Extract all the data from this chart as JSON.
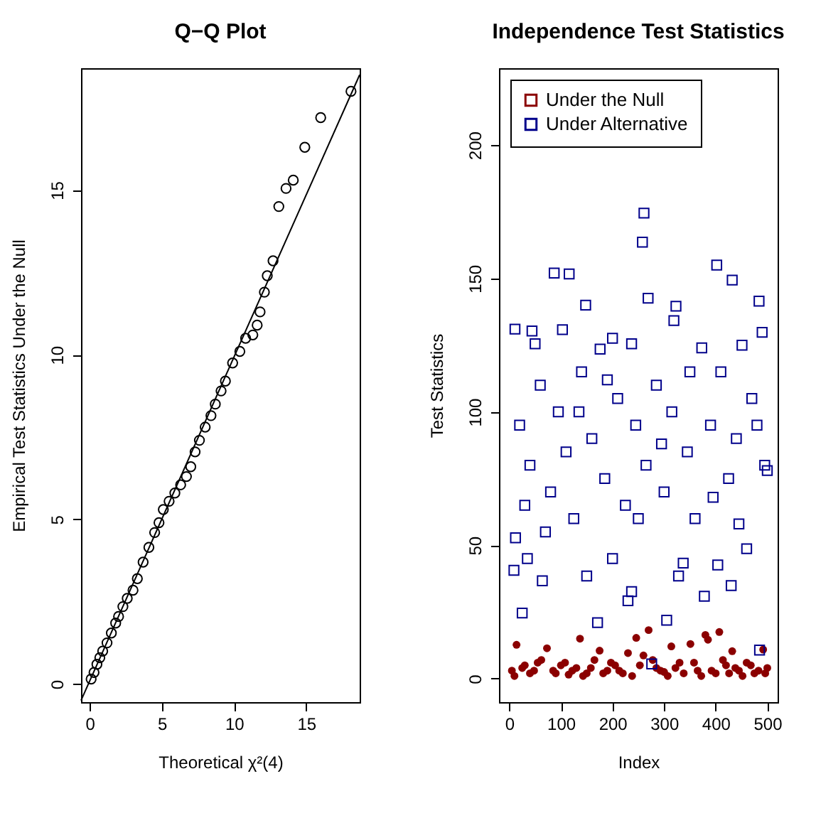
{
  "chart_data": [
    {
      "type": "scatter",
      "title": "Q−Q Plot",
      "xlabel": "Theoretical χ²(4)",
      "ylabel": "Empirical Test Statistics Under the Null",
      "xlim": [
        -0.6,
        18.7
      ],
      "ylim": [
        -0.55,
        18.7
      ],
      "xticks": [
        0,
        5,
        10,
        15
      ],
      "yticks": [
        0,
        5,
        10,
        15
      ],
      "grid": false,
      "series": [
        {
          "color": "#000000",
          "marker": "circle",
          "x": [
            0.1,
            0.3,
            0.5,
            0.7,
            0.9,
            1.2,
            1.5,
            1.8,
            2.0,
            2.3,
            2.6,
            3.0,
            3.3,
            3.7,
            4.1,
            4.5,
            4.8,
            5.1,
            5.5,
            5.9,
            6.3,
            6.7,
            7.0,
            7.3,
            7.6,
            8.0,
            8.4,
            8.7,
            9.1,
            9.4,
            9.9,
            10.4,
            10.8,
            11.3,
            11.6,
            11.8,
            12.1,
            12.3,
            12.7,
            13.1,
            13.6,
            14.1,
            14.9,
            16.0,
            18.1
          ],
          "values": [
            0.15,
            0.35,
            0.6,
            0.8,
            1.0,
            1.25,
            1.55,
            1.85,
            2.05,
            2.35,
            2.6,
            2.85,
            3.2,
            3.7,
            4.15,
            4.6,
            4.9,
            5.3,
            5.55,
            5.8,
            6.05,
            6.3,
            6.6,
            7.05,
            7.4,
            7.8,
            8.15,
            8.5,
            8.9,
            9.2,
            9.75,
            10.1,
            10.5,
            10.6,
            10.9,
            11.3,
            11.9,
            12.4,
            12.85,
            14.5,
            15.05,
            15.3,
            16.3,
            17.2,
            18.0
          ]
        },
        {
          "type": "line",
          "marker": "none",
          "color": "#000000",
          "x": [
            -0.6,
            18.7
          ],
          "values": [
            -0.5,
            18.5
          ]
        }
      ]
    },
    {
      "type": "scatter",
      "title": "Independence Test Statistics",
      "xlabel": "Index",
      "ylabel": "Test Statistics",
      "xlim": [
        -20,
        520
      ],
      "ylim": [
        -8.8,
        228.8
      ],
      "xticks": [
        0,
        100,
        200,
        300,
        400,
        500
      ],
      "yticks": [
        0,
        50,
        100,
        150,
        200
      ],
      "grid": false,
      "legend": "top left",
      "series": [
        {
          "name": "Under the Null",
          "color": "#8b0000",
          "marker": "circle",
          "x": [
            5,
            14,
            25,
            40,
            55,
            73,
            85,
            100,
            115,
            130,
            137,
            150,
            165,
            175,
            190,
            205,
            220,
            230,
            246,
            260,
            270,
            285,
            300,
            314,
            330,
            351,
            365,
            380,
            385,
            400,
            407,
            420,
            432,
            445,
            460,
            475,
            492,
            500,
            10,
            30,
            48,
            62,
            90,
            108,
            122,
            143,
            158,
            182,
            197,
            213,
            238,
            253,
            278,
            293,
            307,
            322,
            338,
            358,
            372,
            392,
            414,
            426,
            438,
            452,
            468,
            483,
            496
          ],
          "values": [
            3,
            12.7,
            4,
            2,
            6,
            11.4,
            3,
            5,
            1.5,
            4,
            15,
            2,
            7,
            10.5,
            3,
            5,
            2,
            9.6,
            15.3,
            8.7,
            18.2,
            4,
            2.5,
            12.1,
            6,
            13,
            3,
            16.4,
            14.6,
            2,
            17.5,
            5,
            10.3,
            3,
            6,
            2,
            10.9,
            4,
            1,
            5,
            3,
            7,
            2,
            6,
            3,
            1,
            4,
            2,
            6,
            3,
            1,
            5,
            7,
            3,
            1,
            4,
            2,
            6,
            1,
            3,
            7,
            2,
            4,
            1,
            5,
            3,
            2
          ]
        },
        {
          "name": "Under Alternative",
          "color": "#00008b",
          "marker": "square",
          "x": [
            261,
            258,
            87,
            116,
            402,
            432,
            148,
            269,
            323,
            319,
            484,
            490,
            11,
            44,
            50,
            103,
            200,
            237,
            176,
            373,
            451,
            25,
            171,
            305,
            485,
            276,
            230,
            237,
            378,
            430,
            328,
            9,
            64,
            150,
            337,
            404,
            35,
            200,
            12,
            460,
            20,
            40,
            60,
            80,
            95,
            110,
            125,
            140,
            160,
            185,
            210,
            225,
            245,
            265,
            285,
            300,
            315,
            345,
            360,
            390,
            410,
            425,
            440,
            470,
            495,
            30,
            70,
            135,
            190,
            250,
            295,
            350,
            395,
            445,
            480,
            500
          ],
          "values": [
            174.5,
            163.6,
            152,
            151.7,
            155,
            149.4,
            140,
            142.6,
            139.6,
            134.2,
            141.5,
            129.8,
            131,
            130.3,
            125.5,
            130.8,
            127.6,
            125.5,
            123.5,
            124,
            125,
            24.6,
            21,
            21.9,
            10.7,
            5.5,
            29.2,
            32.6,
            30.9,
            34.9,
            38.5,
            40.6,
            36.7,
            38.5,
            43.3,
            42.6,
            45,
            45,
            52.8,
            48.7,
            95,
            80,
            110,
            70,
            100,
            85,
            60,
            115,
            90,
            75,
            105,
            65,
            95,
            80,
            110,
            70,
            100,
            85,
            60,
            95,
            115,
            75,
            90,
            105,
            80,
            65,
            55,
            100,
            112,
            60,
            88,
            115,
            68,
            58,
            95,
            78
          ]
        }
      ]
    }
  ]
}
